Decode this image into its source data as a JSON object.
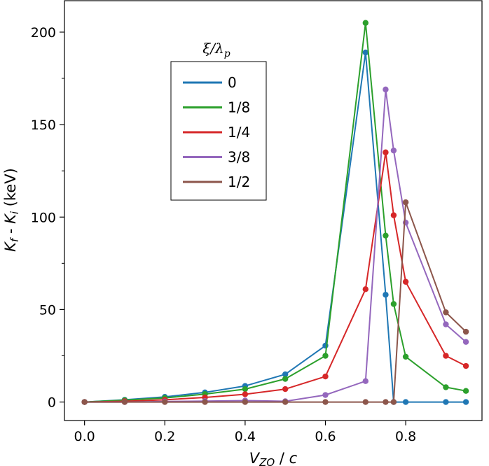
{
  "chart_data": {
    "type": "line",
    "xlabel": "V_ZO / c",
    "ylabel": "K_f - K_i (keV)",
    "xlim": [
      -0.05,
      0.99
    ],
    "ylim": [
      -10,
      217
    ],
    "xticks": [
      0.0,
      0.2,
      0.4,
      0.6,
      0.8
    ],
    "xtick_labels": [
      "0.0",
      "0.2",
      "0.4",
      "0.6",
      "0.8"
    ],
    "yticks": [
      0,
      50,
      100,
      150,
      200
    ],
    "ytick_labels": [
      "0",
      "50",
      "100",
      "150",
      "200"
    ],
    "grid": false,
    "legend": {
      "title": "ξ/λp",
      "placement": "upper-center"
    },
    "series": [
      {
        "name": "0",
        "color": "#1f77b4",
        "x": [
          0.0,
          0.1,
          0.2,
          0.3,
          0.4,
          0.5,
          0.6,
          0.7,
          0.75,
          0.77,
          0.8,
          0.9,
          0.95
        ],
        "y": [
          0,
          1.2,
          2.8,
          5.2,
          8.7,
          15,
          30.5,
          189,
          58,
          0,
          0,
          0,
          0
        ]
      },
      {
        "name": "1/8",
        "color": "#2ca02c",
        "x": [
          0.0,
          0.1,
          0.2,
          0.3,
          0.4,
          0.5,
          0.6,
          0.7,
          0.75,
          0.77,
          0.8,
          0.9,
          0.95
        ],
        "y": [
          0,
          1,
          2.2,
          4.3,
          7,
          12.5,
          25,
          205,
          90,
          53,
          24.5,
          8,
          6
        ]
      },
      {
        "name": "1/4",
        "color": "#d62728",
        "x": [
          0.0,
          0.1,
          0.2,
          0.3,
          0.4,
          0.5,
          0.6,
          0.7,
          0.75,
          0.77,
          0.8,
          0.9,
          0.95
        ],
        "y": [
          0,
          0.4,
          1.2,
          2.5,
          4.2,
          7,
          13.8,
          61,
          135,
          101,
          65,
          25,
          19.5
        ]
      },
      {
        "name": "3/8",
        "color": "#9467bd",
        "x": [
          0.0,
          0.1,
          0.2,
          0.3,
          0.4,
          0.5,
          0.6,
          0.7,
          0.75,
          0.77,
          0.8,
          0.9,
          0.95
        ],
        "y": [
          0,
          0,
          0.3,
          0.5,
          0.8,
          0.4,
          3.8,
          11.3,
          169,
          136,
          97,
          42,
          32.5
        ]
      },
      {
        "name": "1/2",
        "color": "#8c564b",
        "x": [
          0.0,
          0.1,
          0.2,
          0.3,
          0.4,
          0.5,
          0.6,
          0.7,
          0.75,
          0.77,
          0.8,
          0.9,
          0.95
        ],
        "y": [
          0,
          0,
          0,
          0,
          0,
          0,
          0,
          0,
          0,
          0,
          108,
          48.5,
          38
        ]
      }
    ]
  }
}
